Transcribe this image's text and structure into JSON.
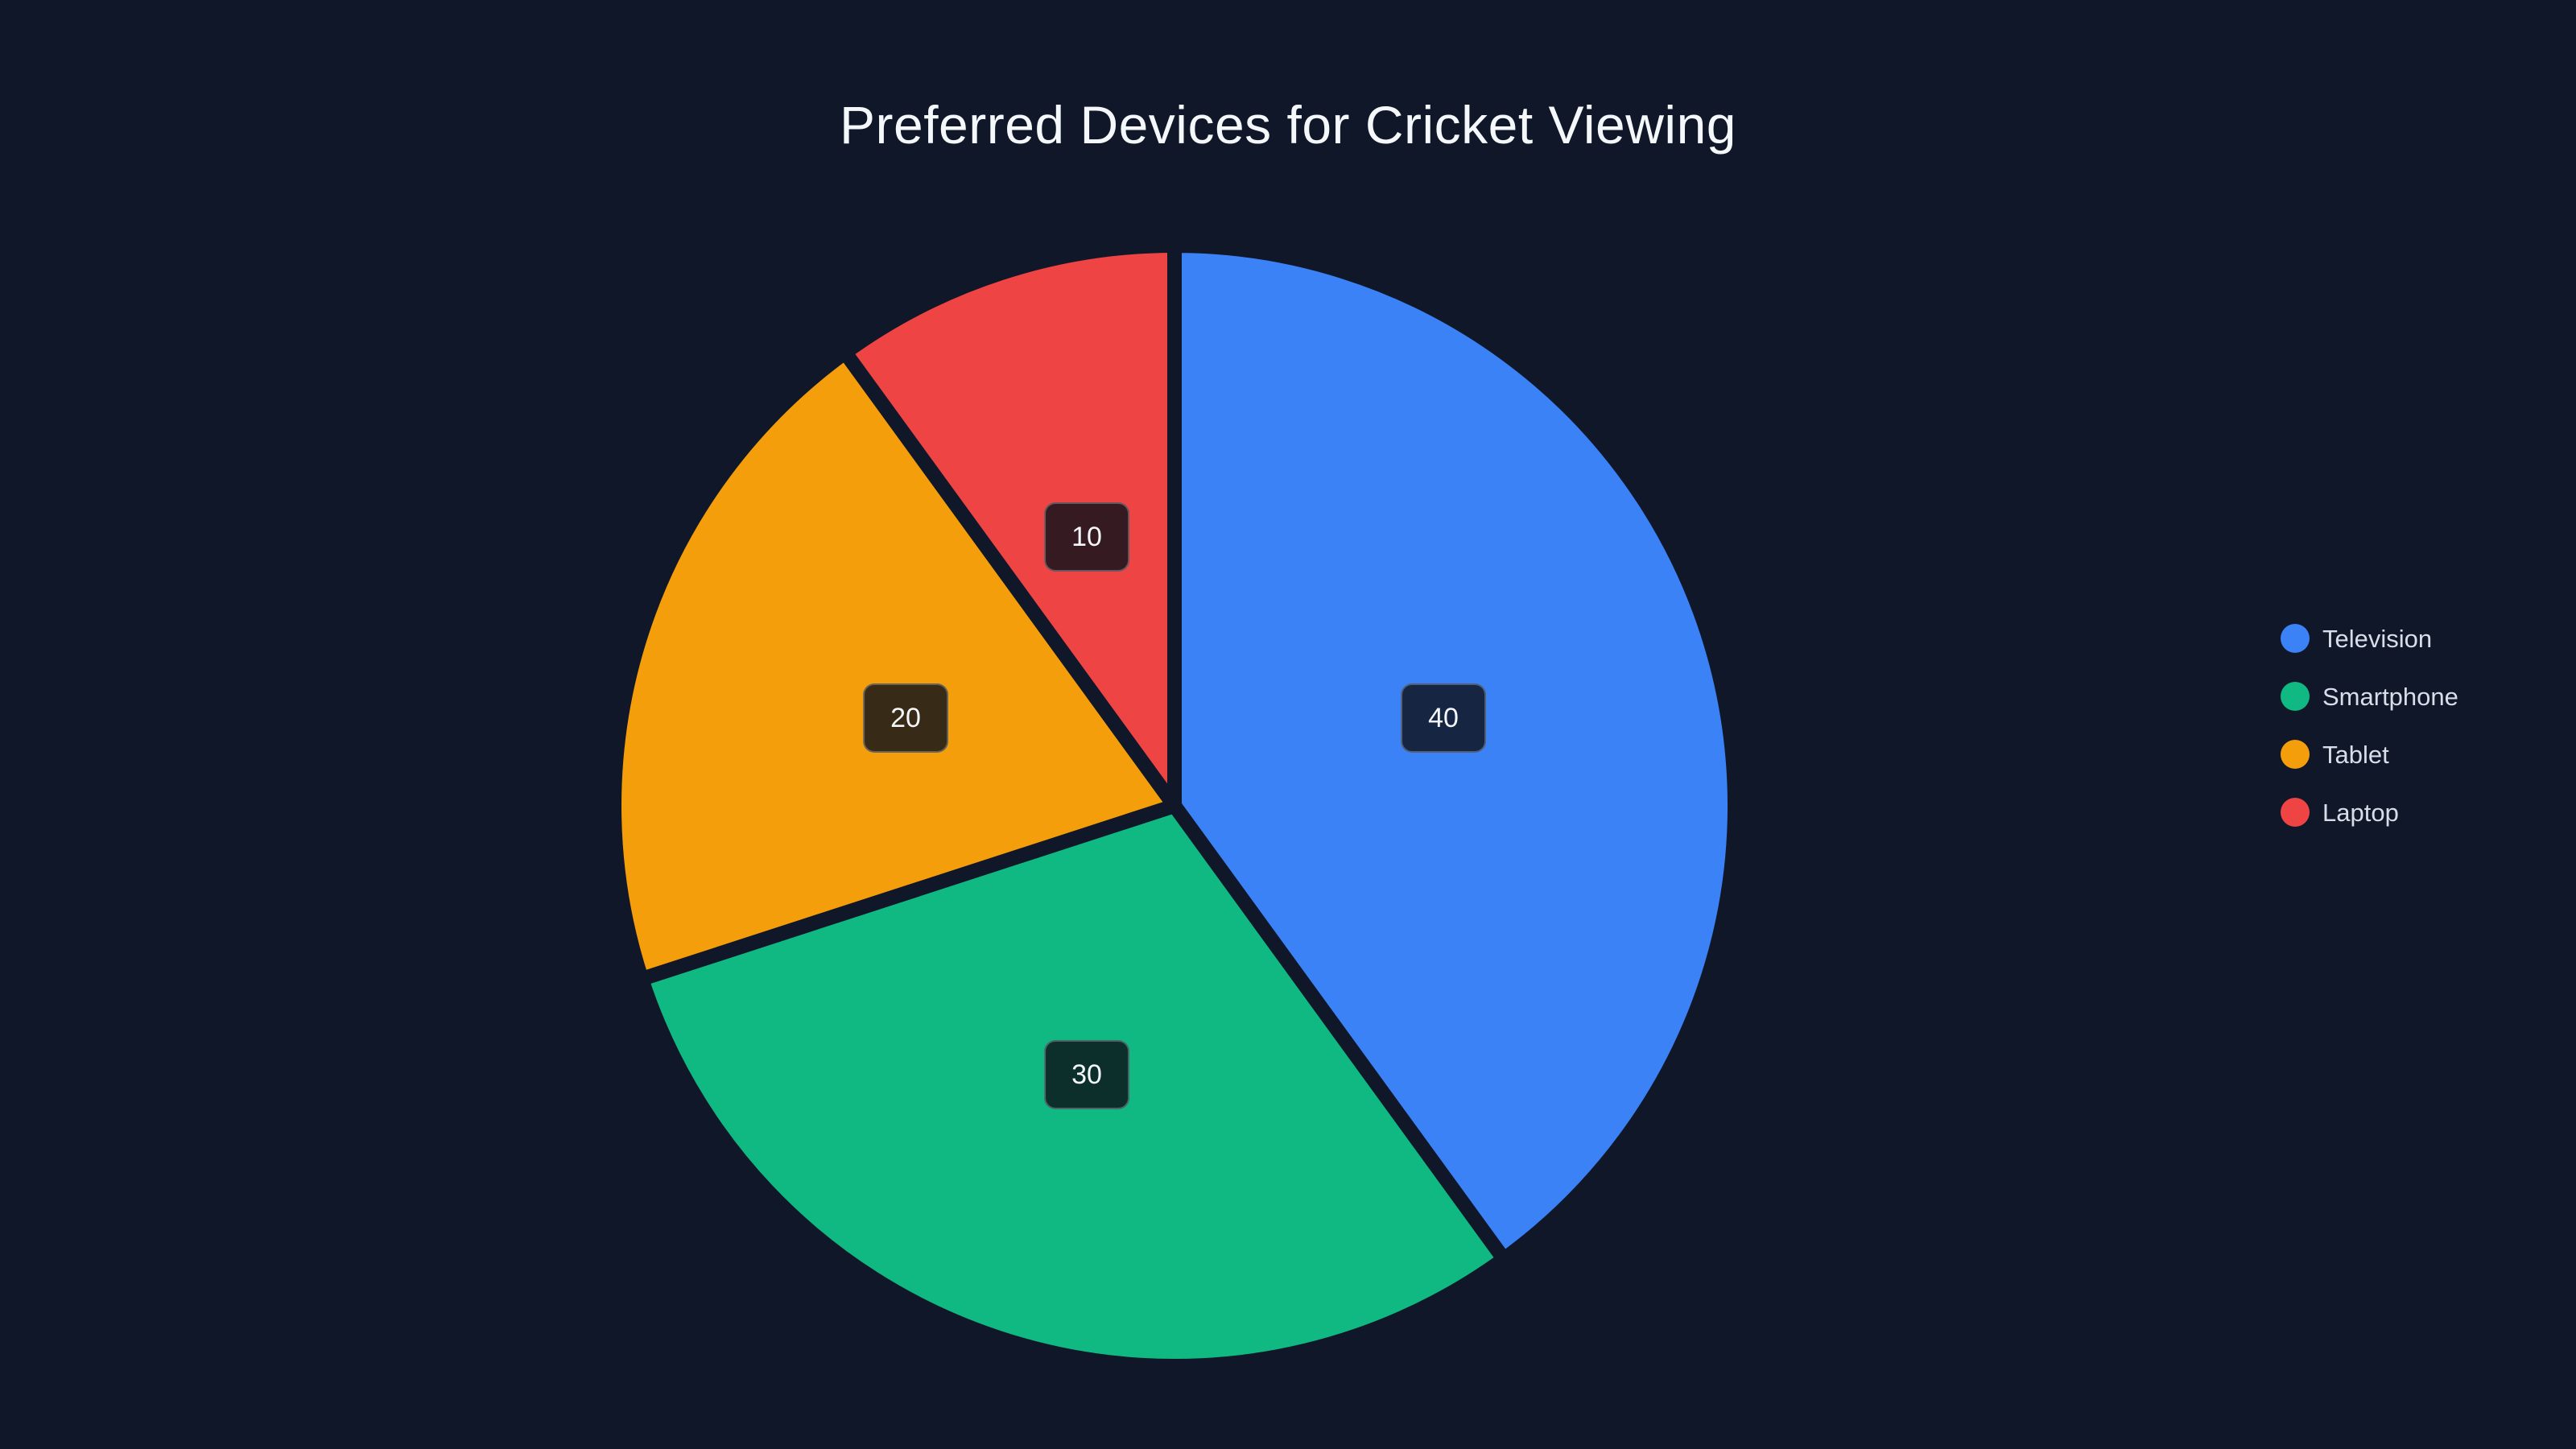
{
  "page": {
    "background_color": "#101729"
  },
  "chart_data": {
    "type": "pie",
    "title": "Preferred Devices for Cricket Viewing",
    "categories": [
      "Television",
      "Smartphone",
      "Tablet",
      "Laptop"
    ],
    "values": [
      40,
      30,
      20,
      10
    ],
    "colors": [
      "#3b82f6",
      "#10b981",
      "#f59e0b",
      "#ef4444"
    ],
    "legend_position": "right",
    "slice_border_color": "#101729",
    "title_color": "#f5f8fb",
    "legend_text_color": "#d8dee8",
    "label_background": "rgba(13,17,26,0.82)",
    "label_border_color": "rgba(222,230,240,0.30)",
    "label_text_color": "#f4f7fa"
  }
}
